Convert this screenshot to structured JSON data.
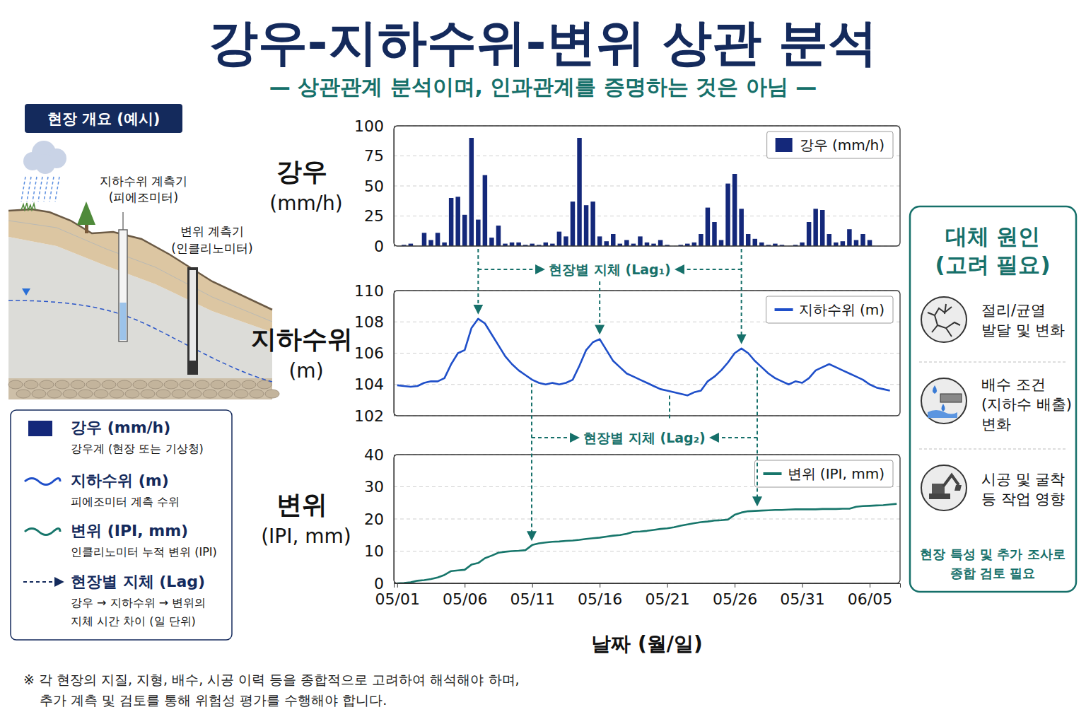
{
  "header": {
    "title": "강우-지하수위-변위 상관 분석",
    "subtitle": "— 상관관계 분석이며, 인과관계를 증명하는 것은 아님 —"
  },
  "site_overview": {
    "badge": "현장 개요 (예시)",
    "piezometer_label": [
      "지하수위 계측기",
      "(피에조미터)"
    ],
    "inclinometer_label": [
      "변위 계측기",
      "(인클리노미터)"
    ]
  },
  "legend_box": {
    "entries": [
      {
        "name": "강우 (mm/h)",
        "description_lines": [
          "강우계 (현장 또는 기상청)"
        ]
      },
      {
        "name": "지하수위 (m)",
        "description_lines": [
          "피에조미터 계측 수위"
        ]
      },
      {
        "name": "변위 (IPI, mm)",
        "description_lines": [
          "인클리노미터 누적 변위 (IPI)"
        ]
      },
      {
        "name": "현장별 지체 (Lag)",
        "description_lines": [
          "강우 → 지하수위 → 변위의",
          "지체 시간 차이 (일 단위)"
        ]
      }
    ]
  },
  "annotations": {
    "lag1": "현장별 지체 (Lag₁)",
    "lag2": "현장별 지체 (Lag₂)"
  },
  "alternative_causes": {
    "title_lines": [
      "대체 원인",
      "(고려 필요)"
    ],
    "items": [
      {
        "lines": [
          "절리/균열",
          "발달 및 변화"
        ]
      },
      {
        "lines": [
          "배수 조건",
          "(지하수 배출)",
          "변화"
        ]
      },
      {
        "lines": [
          "시공 및 굴착",
          "등 작업 영향"
        ]
      }
    ],
    "footer_lines": [
      "현장 특성 및 추가 조사로",
      "종합 검토 필요"
    ]
  },
  "footnote": {
    "lines": [
      "※ 각 현장의 지질, 지형, 배수, 시공 이력 등을 종합적으로 고려하여 해석해야 하며,",
      "추가 계측 및 검토를 통해 위험성 평가를 수행해야 합니다."
    ]
  },
  "chart_data": [
    {
      "type": "bar",
      "y_label": "강우 (mm/h)",
      "x": [
        0,
        0.5,
        1,
        1.5,
        2,
        2.5,
        3,
        3.5,
        4,
        4.5,
        5,
        5.5,
        6,
        6.5,
        7,
        7.5,
        8,
        8.5,
        9,
        9.5,
        10,
        10.5,
        11,
        11.5,
        12,
        12.5,
        13,
        13.5,
        14,
        14.5,
        15,
        15.5,
        16,
        16.5,
        17,
        17.5,
        18,
        18.5,
        19,
        19.5,
        20,
        20.5,
        21,
        21.5,
        22,
        22.5,
        23,
        23.5,
        24,
        24.5,
        25,
        25.5,
        26,
        26.5,
        27,
        27.5,
        28,
        28.5,
        29,
        29.5,
        30,
        30.5,
        31,
        31.5,
        32,
        32.5,
        33,
        33.5,
        34,
        34.5,
        35
      ],
      "series": [
        {
          "name": "강우 (mm/h)",
          "color": "#14287a",
          "values": [
            0,
            1,
            2,
            0,
            11,
            5,
            11,
            3,
            40,
            41,
            26,
            90,
            22,
            59,
            7,
            17,
            2,
            3,
            3,
            1,
            2,
            1,
            3,
            2,
            12,
            8,
            37,
            90,
            34,
            37,
            8,
            4,
            10,
            2,
            5,
            2,
            8,
            3,
            2,
            5,
            1,
            0,
            1,
            2,
            3,
            10,
            32,
            20,
            5,
            52,
            60,
            31,
            10,
            6,
            3,
            1,
            2,
            1,
            0,
            1,
            3,
            20,
            31,
            30,
            10,
            3,
            4,
            14,
            5,
            10,
            5
          ]
        }
      ],
      "xlim": [
        -0.25,
        37.25
      ],
      "ylim": [
        0,
        100
      ],
      "yticks": [
        0,
        25,
        50,
        75,
        100
      ],
      "grid": true,
      "legend": "upper right",
      "tick_labels": "y"
    },
    {
      "type": "line",
      "y_label": "지하수위 (m)",
      "x": [
        0,
        0.5,
        1,
        1.5,
        2,
        2.5,
        3,
        3.5,
        4,
        4.5,
        5,
        5.5,
        6,
        6.5,
        7,
        7.5,
        8,
        8.5,
        9,
        9.5,
        10,
        10.5,
        11,
        11.5,
        12,
        12.5,
        13,
        13.5,
        14,
        14.5,
        15,
        15.5,
        16,
        16.5,
        17,
        17.5,
        18,
        18.5,
        19,
        19.5,
        20,
        20.5,
        21,
        21.5,
        22,
        22.5,
        23,
        23.5,
        24,
        24.5,
        25,
        25.5,
        26,
        26.5,
        27,
        27.5,
        28,
        28.5,
        29,
        29.5,
        30,
        30.5,
        31,
        31.5,
        32,
        32.5,
        33,
        33.5,
        34,
        34.5,
        35,
        35.5,
        36,
        36.5
      ],
      "series": [
        {
          "name": "지하수위 (m)",
          "color": "#1f4fc9",
          "values": [
            103.95,
            103.9,
            103.85,
            103.9,
            104.1,
            104.2,
            104.2,
            104.4,
            105.3,
            106,
            106.2,
            107.6,
            108.2,
            107.9,
            107.2,
            106.5,
            105.8,
            105.3,
            104.9,
            104.6,
            104.3,
            104.1,
            104,
            104.1,
            104,
            104.1,
            104.3,
            105.2,
            106.2,
            106.7,
            106.9,
            106.2,
            105.5,
            105.1,
            104.7,
            104.5,
            104.3,
            104.1,
            103.9,
            103.7,
            103.6,
            103.5,
            103.4,
            103.3,
            103.5,
            103.6,
            104.2,
            104.5,
            104.9,
            105.4,
            106,
            106.3,
            106,
            105.5,
            105.1,
            104.7,
            104.4,
            104.2,
            104,
            104.2,
            104.1,
            104.4,
            104.9,
            105.1,
            105.3,
            105.1,
            104.9,
            104.7,
            104.5,
            104.3,
            104,
            103.8,
            103.7,
            103.6
          ]
        }
      ],
      "xlim": [
        -0.25,
        37.25
      ],
      "ylim": [
        102,
        110
      ],
      "yticks": [
        102,
        104,
        106,
        108,
        110
      ],
      "grid": true,
      "legend": "upper right",
      "tick_labels": "y"
    },
    {
      "type": "line",
      "y_label": "변위 (IPI, mm)",
      "x_label": "날짜 (월/일)",
      "x": [
        0,
        0.5,
        1,
        1.5,
        2,
        2.5,
        3,
        3.5,
        4,
        4.5,
        5,
        5.5,
        6,
        6.5,
        7,
        7.5,
        8,
        8.5,
        9,
        9.5,
        10,
        10.5,
        11,
        11.5,
        12,
        12.5,
        13,
        13.5,
        14,
        14.5,
        15,
        15.5,
        16,
        16.5,
        17,
        17.5,
        18,
        18.5,
        19,
        19.5,
        20,
        20.5,
        21,
        21.5,
        22,
        22.5,
        23,
        23.5,
        24,
        24.5,
        25,
        25.5,
        26,
        26.5,
        27,
        27.5,
        28,
        28.5,
        29,
        29.5,
        30,
        30.5,
        31,
        31.5,
        32,
        32.5,
        33,
        33.5,
        34,
        34.5,
        35,
        35.5,
        36,
        36.5,
        37
      ],
      "series": [
        {
          "name": "변위 (IPI, mm)",
          "color": "#17766b",
          "values": [
            0,
            0.1,
            0.3,
            0.8,
            1,
            1.3,
            1.8,
            2.6,
            3.8,
            4,
            4.2,
            5.8,
            6.3,
            7.8,
            8.6,
            9.5,
            9.8,
            10,
            10.1,
            10.3,
            11.9,
            12.4,
            12.7,
            12.9,
            13,
            13.2,
            13.3,
            13.5,
            13.8,
            14,
            14.2,
            14.5,
            14.8,
            15,
            15.4,
            16,
            16.1,
            16.3,
            16.6,
            16.9,
            17.1,
            17.4,
            17.9,
            18.3,
            18.7,
            19,
            19.2,
            19.5,
            19.6,
            19.8,
            21.3,
            22,
            22.4,
            22.5,
            22.6,
            22.7,
            22.8,
            22.8,
            22.9,
            23,
            23,
            23,
            23,
            23.1,
            23.1,
            23.1,
            23.2,
            23.2,
            23.8,
            24,
            24.1,
            24.2,
            24.3,
            24.5,
            24.7
          ]
        }
      ],
      "xlim": [
        -0.25,
        37.25
      ],
      "xticks": [
        {
          "value": 0,
          "label": "05/01"
        },
        {
          "value": 5,
          "label": "05/06"
        },
        {
          "value": 10,
          "label": "05/11"
        },
        {
          "value": 15,
          "label": "05/16"
        },
        {
          "value": 20,
          "label": "05/21"
        },
        {
          "value": 25,
          "label": "05/26"
        },
        {
          "value": 30,
          "label": "05/31"
        },
        {
          "value": 35,
          "label": "06/05"
        }
      ],
      "ylim": [
        0,
        40
      ],
      "yticks": [
        0,
        10,
        20,
        30,
        40
      ],
      "grid": true,
      "legend": "upper right"
    }
  ]
}
